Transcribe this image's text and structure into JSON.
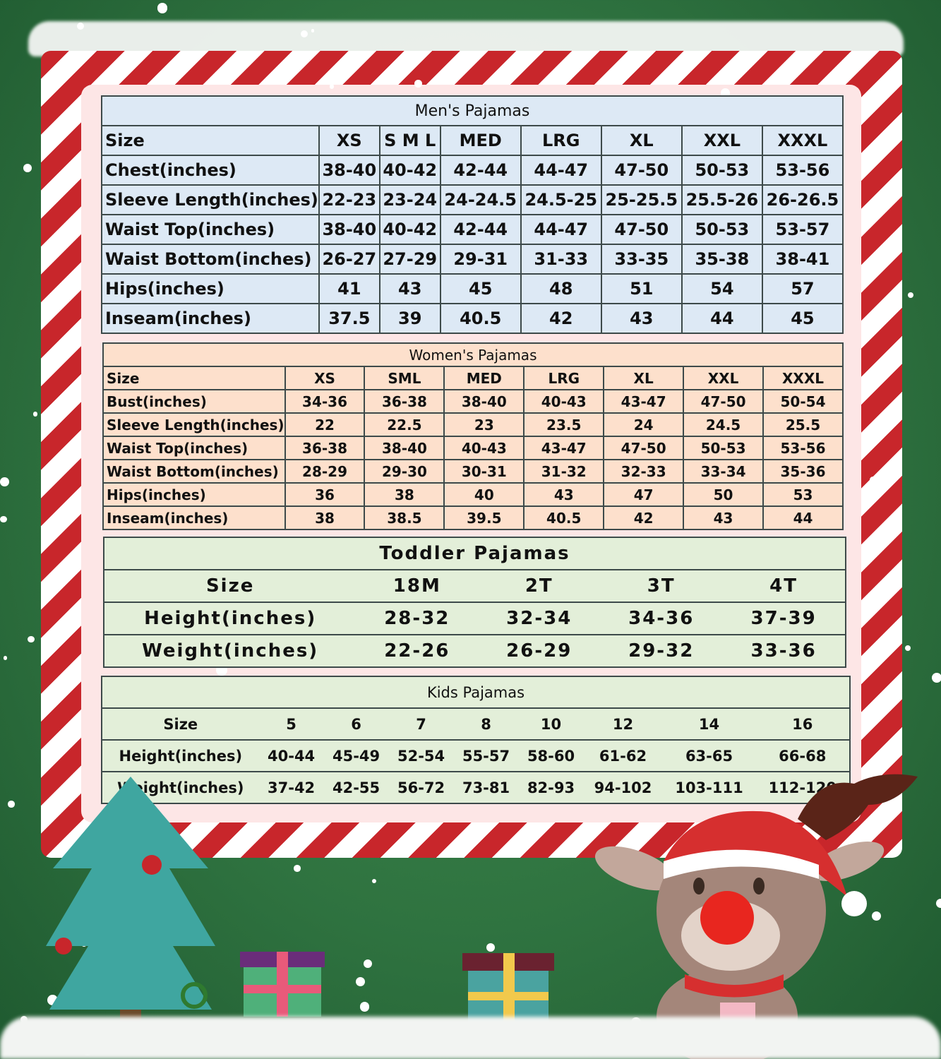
{
  "colors": {
    "background": "#2f7340",
    "stripe_red": "#c8262b",
    "men_bg": "#dde9f5",
    "women_bg": "#fde0cc",
    "kids_bg": "#e3efd9",
    "panel": "#fde6e6"
  },
  "men": {
    "title": "Men's Pajamas",
    "header": [
      "Size",
      "XS",
      "S M L",
      "MED",
      "LRG",
      "XL",
      "XXL",
      "XXXL"
    ],
    "rows": [
      [
        "Chest(inches)",
        "38-40",
        "40-42",
        "42-44",
        "44-47",
        "47-50",
        "50-53",
        "53-56"
      ],
      [
        "Sleeve Length(inches)",
        "22-23",
        "23-24",
        "24-24.5",
        "24.5-25",
        "25-25.5",
        "25.5-26",
        "26-26.5"
      ],
      [
        "Waist Top(inches)",
        "38-40",
        "40-42",
        "42-44",
        "44-47",
        "47-50",
        "50-53",
        "53-57"
      ],
      [
        "Waist Bottom(inches)",
        "26-27",
        "27-29",
        "29-31",
        "31-33",
        "33-35",
        "35-38",
        "38-41"
      ],
      [
        "Hips(inches)",
        "41",
        "43",
        "45",
        "48",
        "51",
        "54",
        "57"
      ],
      [
        "Inseam(inches)",
        "37.5",
        "39",
        "40.5",
        "42",
        "43",
        "44",
        "45"
      ]
    ]
  },
  "women": {
    "title": "Women's Pajamas",
    "header": [
      "Size",
      "XS",
      "SML",
      "MED",
      "LRG",
      "XL",
      "XXL",
      "XXXL"
    ],
    "rows": [
      [
        "Bust(inches)",
        "34-36",
        "36-38",
        "38-40",
        "40-43",
        "43-47",
        "47-50",
        "50-54"
      ],
      [
        "Sleeve Length(inches)",
        "22",
        "22.5",
        "23",
        "23.5",
        "24",
        "24.5",
        "25.5"
      ],
      [
        "Waist Top(inches)",
        "36-38",
        "38-40",
        "40-43",
        "43-47",
        "47-50",
        "50-53",
        "53-56"
      ],
      [
        "Waist Bottom(inches)",
        "28-29",
        "29-30",
        "30-31",
        "31-32",
        "32-33",
        "33-34",
        "35-36"
      ],
      [
        "Hips(inches)",
        "36",
        "38",
        "40",
        "43",
        "47",
        "50",
        "53"
      ],
      [
        "Inseam(inches)",
        "38",
        "38.5",
        "39.5",
        "40.5",
        "42",
        "43",
        "44"
      ]
    ]
  },
  "toddler": {
    "title": "Toddler Pajamas",
    "header": [
      "Size",
      "18M",
      "2T",
      "3T",
      "4T"
    ],
    "rows": [
      [
        "Height(inches)",
        "28-32",
        "32-34",
        "34-36",
        "37-39"
      ],
      [
        "Weight(inches)",
        "22-26",
        "26-29",
        "29-32",
        "33-36"
      ]
    ]
  },
  "kids": {
    "title": "Kids Pajamas",
    "header": [
      "Size",
      "5",
      "6",
      "7",
      "8",
      "10",
      "12",
      "14",
      "16"
    ],
    "rows": [
      [
        "Height(inches)",
        "40-44",
        "45-49",
        "52-54",
        "55-57",
        "58-60",
        "61-62",
        "63-65",
        "66-68"
      ],
      [
        "Weight(inches)",
        "37-42",
        "42-55",
        "56-72",
        "73-81",
        "82-93",
        "94-102",
        "103-111",
        "112-120"
      ]
    ]
  }
}
